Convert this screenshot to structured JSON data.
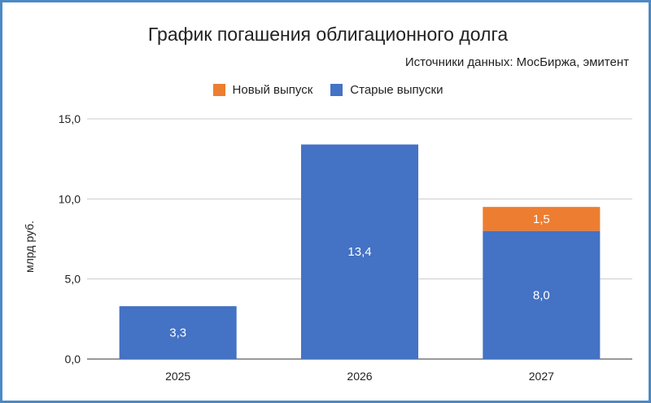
{
  "chart_data": {
    "type": "bar",
    "stacked": true,
    "title": "График погашения облигационного долга",
    "subtitle": "Источники данных: МосБиржа, эмитент",
    "ylabel": "млрд руб.",
    "xlabel": "",
    "ylim": [
      0,
      15
    ],
    "yticks": [
      "0,0",
      "5,0",
      "10,0",
      "15,0"
    ],
    "categories": [
      "2025",
      "2026",
      "2027"
    ],
    "legend_position": "top-center",
    "grid": true,
    "series": [
      {
        "name": "Старые выпуски",
        "color": "#4472c4",
        "values": [
          3.3,
          13.4,
          8.0
        ],
        "labels": [
          "3,3",
          "13,4",
          "8,0"
        ]
      },
      {
        "name": "Новый выпуск",
        "color": "#ed7d31",
        "values": [
          0,
          0,
          1.5
        ],
        "labels": [
          "",
          "",
          "1,5"
        ]
      }
    ],
    "legend_order": [
      1,
      0
    ]
  }
}
